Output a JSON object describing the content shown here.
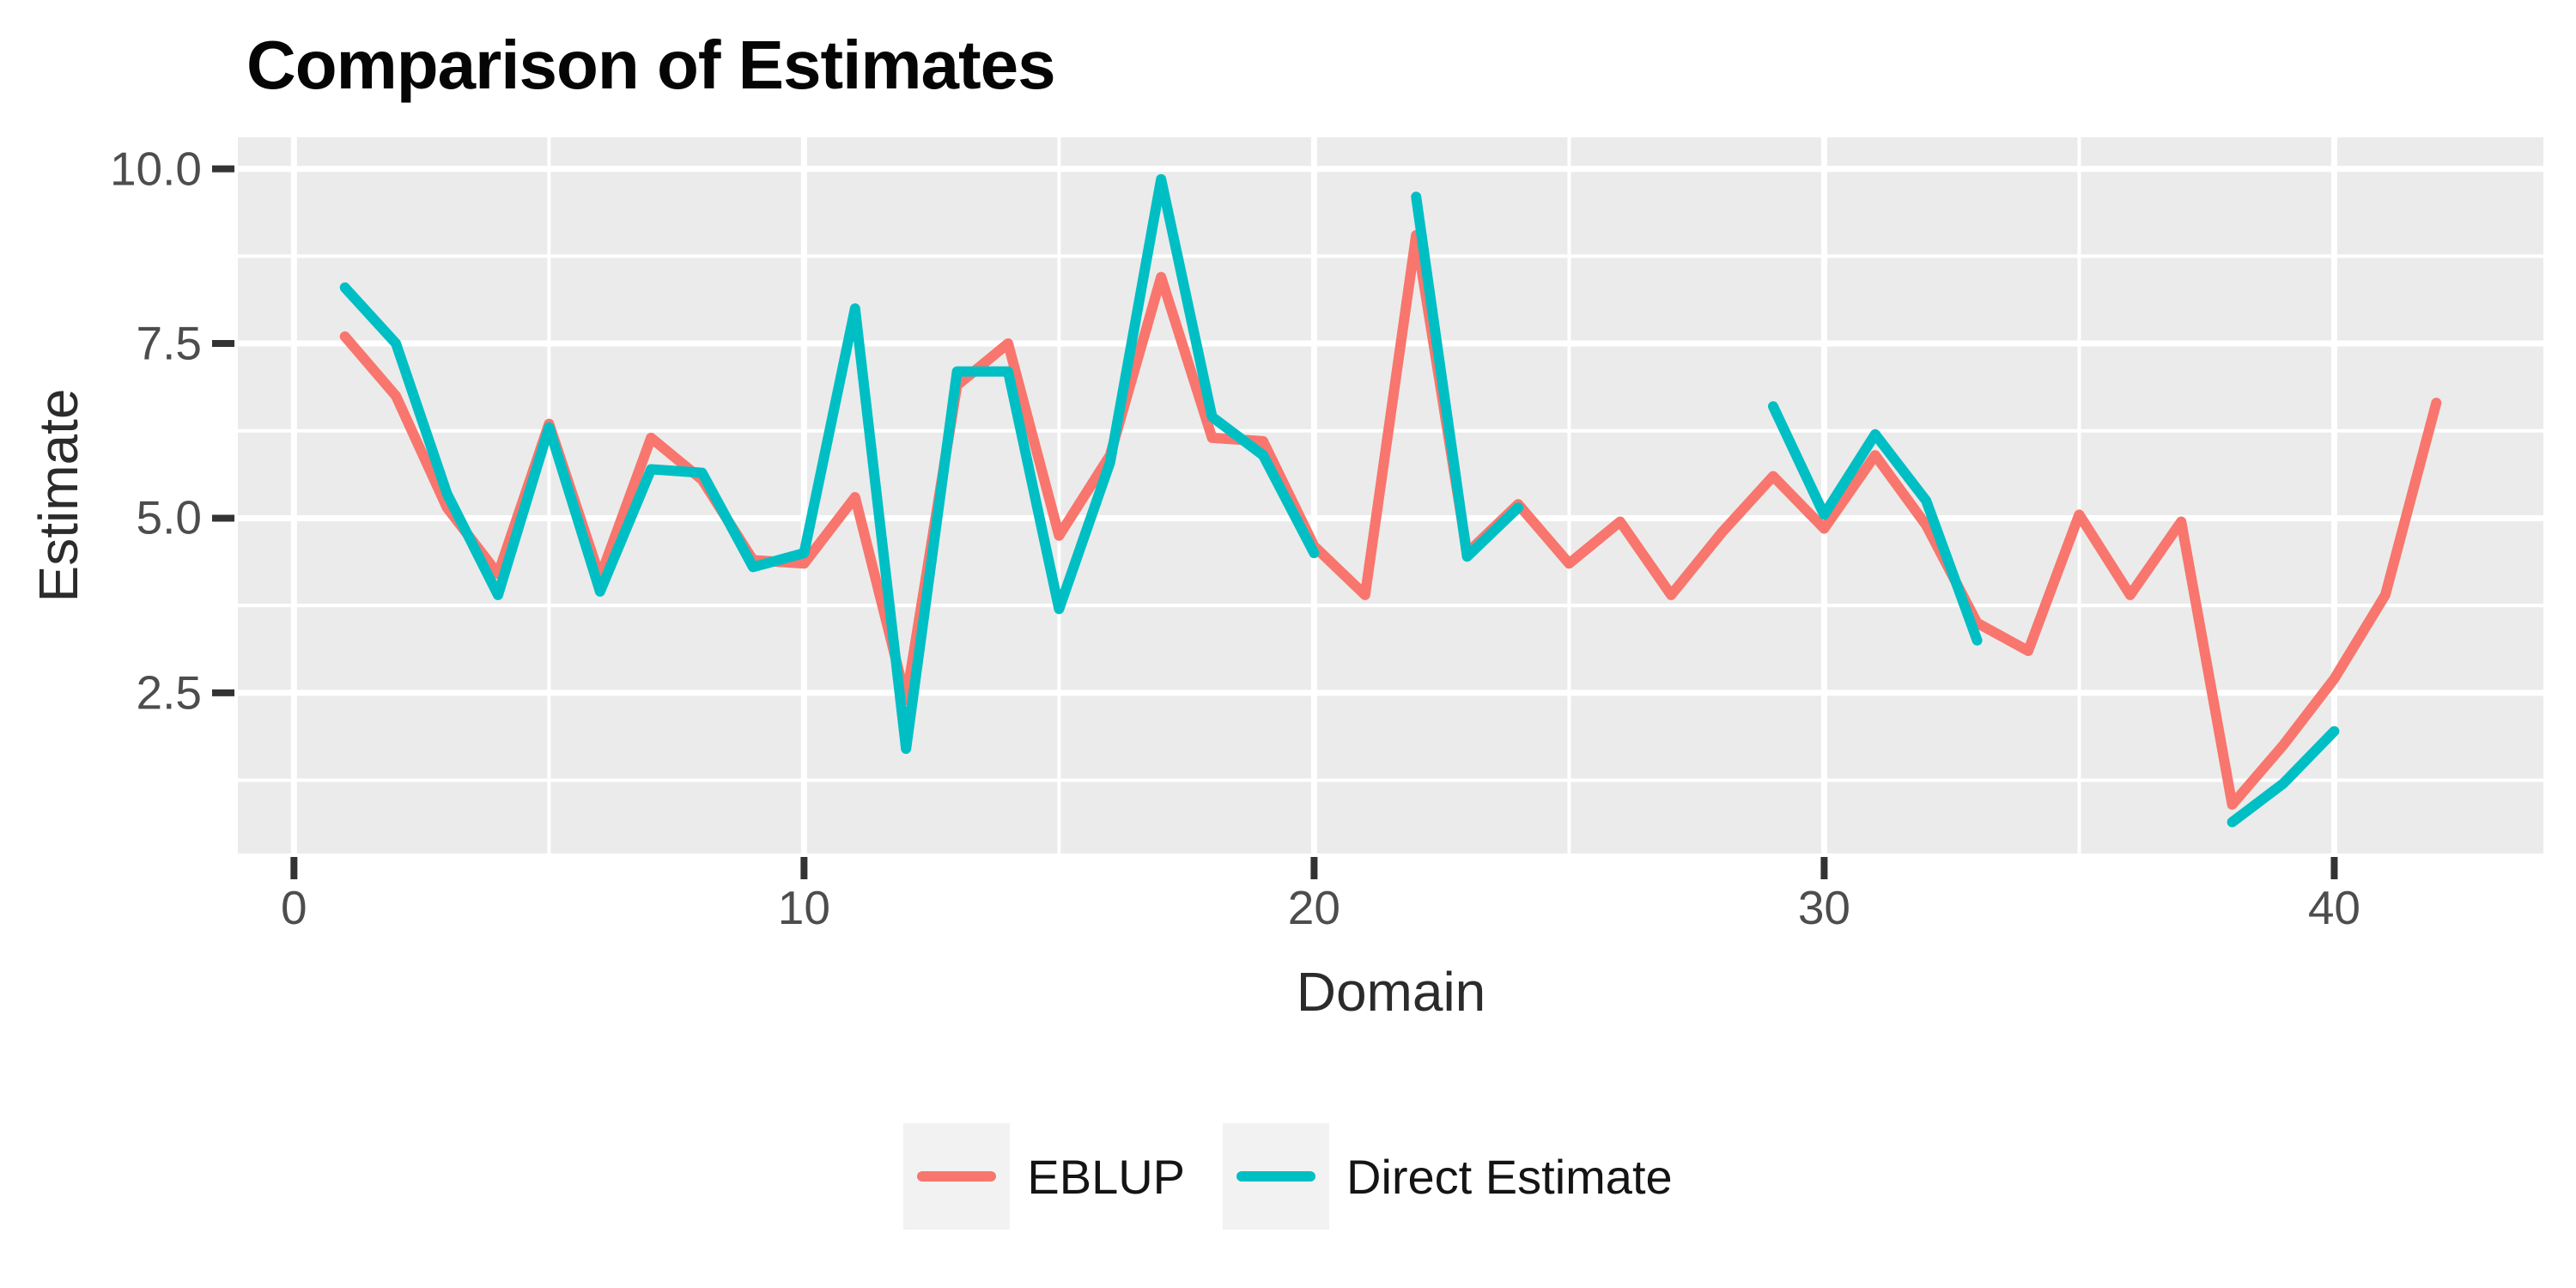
{
  "title": "Comparison of Estimates",
  "chart_data": {
    "type": "line",
    "title": "Comparison of Estimates",
    "xlabel": "Domain",
    "ylabel": "Estimate",
    "x_ticks": [
      0,
      10,
      20,
      30,
      40
    ],
    "x_tick_labels": [
      "0",
      "10",
      "20",
      "30",
      "40"
    ],
    "x_minor_ticks": [
      5,
      15,
      25,
      35
    ],
    "y_ticks": [
      2.5,
      5.0,
      7.5,
      10.0
    ],
    "y_tick_labels": [
      "2.5",
      "5.0",
      "7.5",
      "10.0"
    ],
    "y_minor_ticks": [
      1.25,
      3.75,
      6.25,
      8.75
    ],
    "xlim": [
      -1.1,
      44.1
    ],
    "ylim": [
      0.2,
      10.45
    ],
    "grid": "on",
    "legend_position": "bottom",
    "x": [
      1,
      2,
      3,
      4,
      5,
      6,
      7,
      8,
      9,
      10,
      11,
      12,
      13,
      14,
      15,
      16,
      17,
      18,
      19,
      20,
      21,
      22,
      23,
      24,
      25,
      26,
      27,
      28,
      29,
      30,
      31,
      32,
      33,
      34,
      35,
      36,
      37,
      38,
      39,
      40,
      41,
      42
    ],
    "series": [
      {
        "name": "EBLUP",
        "color": "#F8766D",
        "values": [
          7.6,
          6.75,
          5.15,
          4.2,
          6.35,
          4.15,
          6.15,
          5.55,
          4.4,
          4.35,
          5.3,
          2.4,
          6.9,
          7.5,
          4.75,
          5.9,
          8.45,
          6.15,
          6.1,
          4.6,
          3.9,
          9.05,
          4.5,
          5.2,
          4.35,
          4.95,
          3.9,
          4.8,
          5.6,
          4.85,
          5.9,
          4.9,
          3.5,
          3.1,
          5.05,
          3.9,
          4.95,
          0.9,
          1.75,
          2.7,
          3.9,
          6.65
        ]
      },
      {
        "name": "Direct Estimate",
        "color": "#00BFC4",
        "values": [
          8.3,
          7.5,
          5.35,
          3.9,
          6.3,
          3.95,
          5.7,
          5.65,
          4.3,
          4.5,
          8.0,
          1.7,
          7.1,
          7.1,
          3.7,
          5.8,
          9.85,
          6.45,
          5.9,
          4.5,
          null,
          9.6,
          4.45,
          5.15,
          null,
          null,
          null,
          null,
          6.6,
          5.05,
          6.2,
          5.25,
          3.25,
          null,
          null,
          null,
          null,
          0.65,
          1.2,
          1.95,
          null,
          null
        ]
      }
    ]
  },
  "colors": {
    "panel_background": "#EBEBEB",
    "gridline": "#FFFFFF",
    "tick_mark": "#333333",
    "tick_label": "#4D4D4D",
    "axis_title": "#2B2B2B",
    "title": "#050505",
    "legend_key_background": "#F2F2F2",
    "eblup_line": "#F8766D",
    "direct_line": "#00BFC4"
  },
  "legend": {
    "items": [
      {
        "label": "EBLUP",
        "swatch": "line-swatch",
        "color": "#F8766D"
      },
      {
        "label": "Direct Estimate",
        "swatch": "line-swatch",
        "color": "#00BFC4"
      }
    ]
  }
}
